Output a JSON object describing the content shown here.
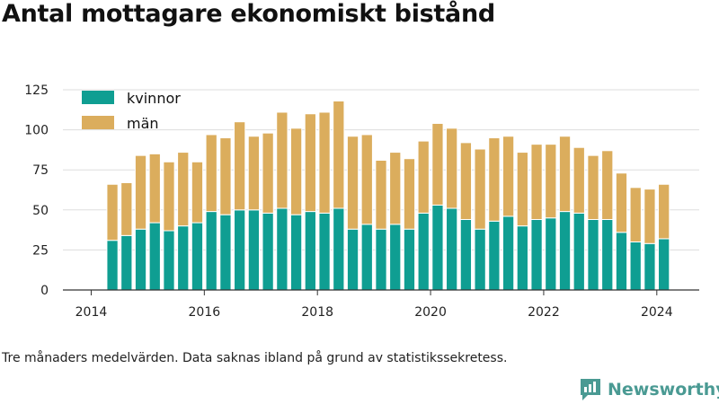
{
  "title": "Antal mottagare ekonomiskt bistånd",
  "note": "Tre månaders medelvärden. Data saknas ibland på grund av statistikssekretess.",
  "brand": {
    "name": "Newsworthy",
    "icon": "newsworthy-logo-icon",
    "color": "#4a9a93"
  },
  "chart_data": {
    "type": "bar",
    "stacked": true,
    "title": "Antal mottagare ekonomiskt bistånd",
    "xlabel": "",
    "ylabel": "",
    "ylim": [
      0,
      125
    ],
    "yticks": [
      0,
      25,
      50,
      75,
      100,
      125
    ],
    "xlim": [
      2013.5,
      2024.75
    ],
    "xticks": [
      2014,
      2016,
      2018,
      2020,
      2022,
      2024
    ],
    "grid": true,
    "legend": "top-left",
    "x": [
      2014.375,
      2014.625,
      2014.875,
      2015.125,
      2015.375,
      2015.625,
      2015.875,
      2016.125,
      2016.375,
      2016.625,
      2016.875,
      2017.125,
      2017.375,
      2017.625,
      2017.875,
      2018.125,
      2018.375,
      2018.625,
      2018.875,
      2019.125,
      2019.375,
      2019.625,
      2019.875,
      2020.125,
      2020.375,
      2020.625,
      2020.875,
      2021.125,
      2021.375,
      2021.625,
      2021.875,
      2022.125,
      2022.375,
      2022.625,
      2022.875,
      2023.125,
      2023.375,
      2023.625,
      2023.875,
      2024.125
    ],
    "series": [
      {
        "name": "kvinnor",
        "color": "#0f9e92",
        "values": [
          31,
          34,
          38,
          42,
          37,
          40,
          42,
          49,
          47,
          50,
          50,
          48,
          51,
          47,
          49,
          48,
          51,
          38,
          41,
          38,
          41,
          38,
          48,
          53,
          51,
          44,
          38,
          43,
          46,
          40,
          44,
          45,
          49,
          48,
          44,
          44,
          36,
          30,
          29,
          32
        ]
      },
      {
        "name": "män",
        "color": "#dbad5d",
        "values": [
          35,
          33,
          46,
          43,
          43,
          46,
          38,
          48,
          48,
          55,
          46,
          50,
          60,
          54,
          61,
          63,
          67,
          58,
          56,
          43,
          45,
          44,
          45,
          51,
          50,
          48,
          50,
          52,
          50,
          46,
          47,
          46,
          47,
          41,
          40,
          43,
          37,
          34,
          34,
          34
        ]
      }
    ]
  }
}
